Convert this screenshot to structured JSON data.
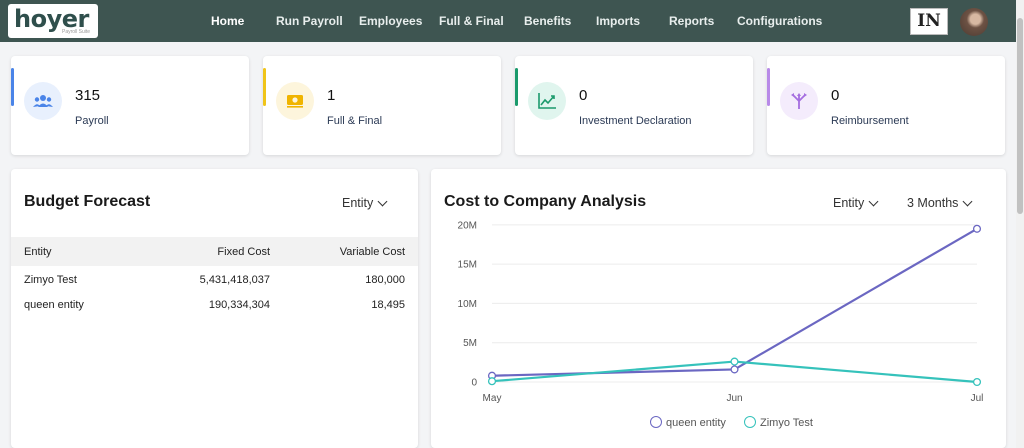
{
  "brand": {
    "logo_text": "hoyer",
    "logo_sub": "Payroll Suite"
  },
  "nav": {
    "items": [
      {
        "label": "Home",
        "active": true
      },
      {
        "label": "Run Payroll"
      },
      {
        "label": "Employees"
      },
      {
        "label": "Full & Final"
      },
      {
        "label": "Benefits"
      },
      {
        "label": "Imports"
      },
      {
        "label": "Reports"
      },
      {
        "label": "Configurations"
      }
    ],
    "country": "IN"
  },
  "stats": [
    {
      "count": "315",
      "label": "Payroll",
      "icon": "users-icon",
      "accent": "#4a84e8"
    },
    {
      "count": "1",
      "label": "Full & Final",
      "icon": "money-icon",
      "accent": "#f0c419"
    },
    {
      "count": "0",
      "label": "Investment Declaration",
      "icon": "trend-chart-icon",
      "accent": "#1b9a6c"
    },
    {
      "count": "0",
      "label": "Reimbursement",
      "icon": "split-arrows-icon",
      "accent": "#b88ae8"
    }
  ],
  "budget": {
    "title": "Budget Forecast",
    "filter": "Entity",
    "columns": [
      "Entity",
      "Fixed Cost",
      "Variable Cost"
    ],
    "rows": [
      [
        "Zimyo Test",
        "5,431,418,037",
        "180,000"
      ],
      [
        "queen entity",
        "190,334,304",
        "18,495"
      ]
    ]
  },
  "ctc": {
    "title": "Cost to Company Analysis",
    "filter_entity": "Entity",
    "filter_period": "3 Months"
  },
  "chart_data": {
    "type": "line",
    "x": [
      "May",
      "Jun",
      "Jul"
    ],
    "yticks": [
      "0",
      "5M",
      "10M",
      "15M",
      "20M"
    ],
    "ylim": [
      0,
      21000000
    ],
    "series": [
      {
        "name": "queen entity",
        "color": "#6b67c2",
        "values": [
          800000,
          1600000,
          19500000
        ]
      },
      {
        "name": "Zimyo Test",
        "color": "#35c2bb",
        "values": [
          100000,
          2600000,
          0
        ]
      }
    ],
    "legend": "bottom",
    "grid": true
  }
}
